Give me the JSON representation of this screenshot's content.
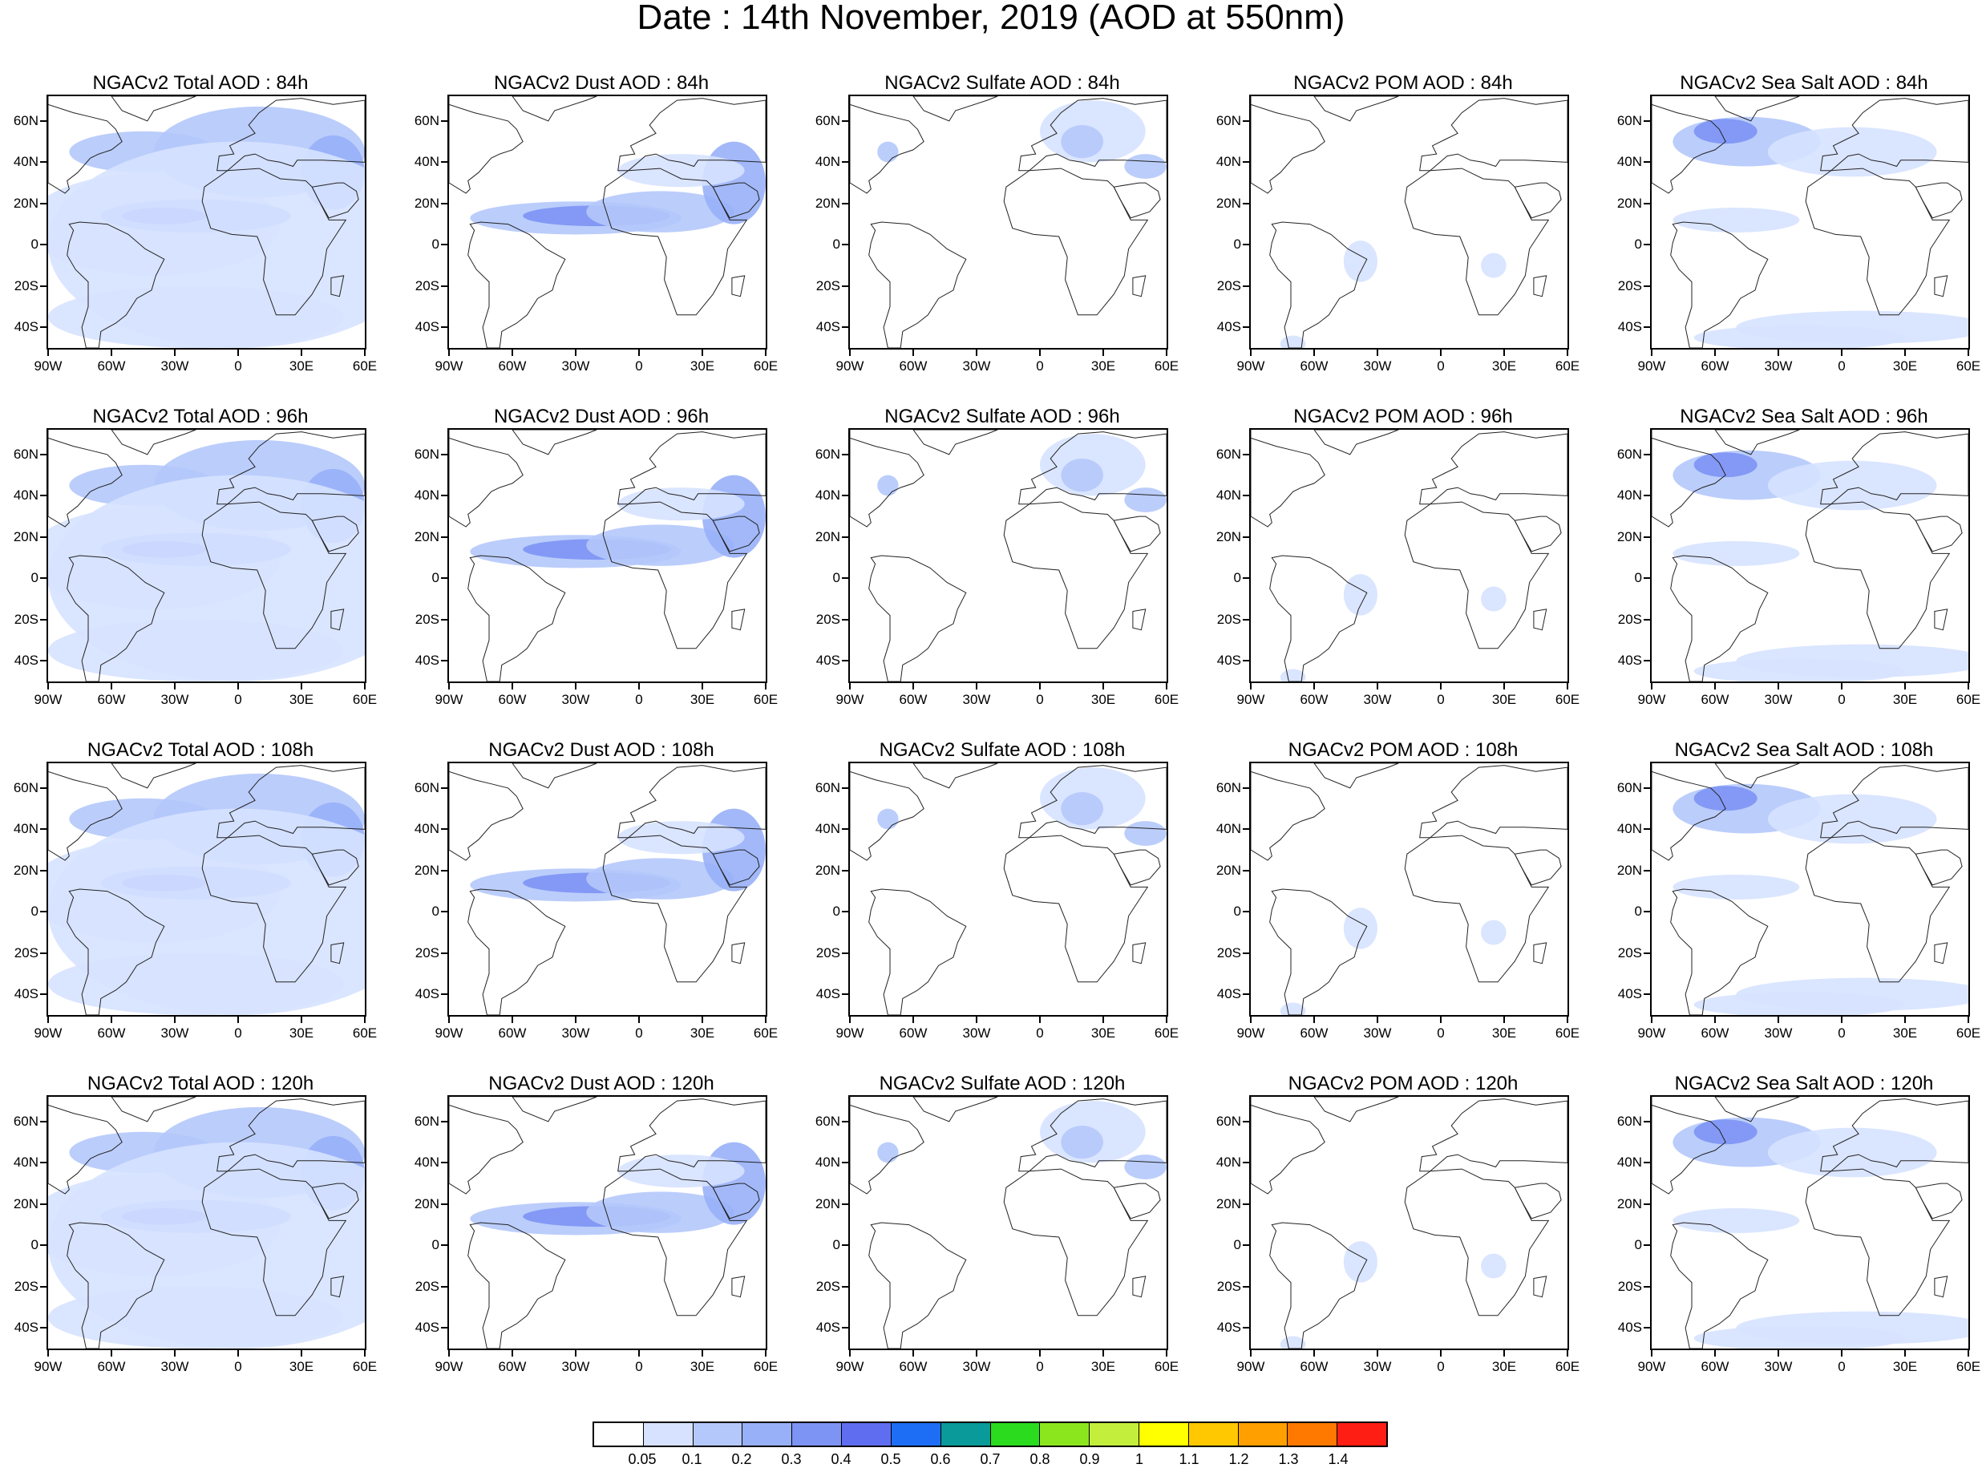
{
  "title": "Date : 14th November, 2019 (AOD at 550nm)",
  "panel_titles": [
    [
      "NGACv2 Total AOD : 84h",
      "NGACv2 Dust AOD : 84h",
      "NGACv2 Sulfate AOD : 84h",
      "NGACv2 POM AOD : 84h",
      "NGACv2 Sea Salt AOD : 84h"
    ],
    [
      "NGACv2 Total AOD : 96h",
      "NGACv2 Dust AOD : 96h",
      "NGACv2 Sulfate AOD : 96h",
      "NGACv2 POM AOD : 96h",
      "NGACv2 Sea Salt AOD : 96h"
    ],
    [
      "NGACv2 Total AOD : 108h",
      "NGACv2 Dust AOD : 108h",
      "NGACv2 Sulfate AOD : 108h",
      "NGACv2 POM AOD : 108h",
      "NGACv2 Sea Salt AOD : 108h"
    ],
    [
      "NGACv2 Total AOD : 120h",
      "NGACv2 Dust AOD : 120h",
      "NGACv2 Sulfate AOD : 120h",
      "NGACv2 POM AOD : 120h",
      "NGACv2 Sea Salt  AOD : 120h"
    ]
  ],
  "lat_labels": [
    "60N",
    "40N",
    "20N",
    "0",
    "20S",
    "40S"
  ],
  "lon_labels": [
    "90W",
    "60W",
    "30W",
    "0",
    "30E",
    "60E"
  ],
  "colorbar": {
    "colors": [
      "#ffffff",
      "#d6e2ff",
      "#b4c8fb",
      "#98b0f8",
      "#7d94f4",
      "#5f6ef0",
      "#1e6ef5",
      "#0a9a9a",
      "#2bdc1e",
      "#8ce61e",
      "#c3ee3c",
      "#ffff00",
      "#ffc800",
      "#ffa000",
      "#ff7800",
      "#ff1e14"
    ],
    "labels": [
      "0.05",
      "0.1",
      "0.2",
      "0.3",
      "0.4",
      "0.5",
      "0.6",
      "0.7",
      "0.8",
      "0.9",
      "1",
      "1.1",
      "1.2",
      "1.3",
      "1.4"
    ]
  },
  "chart_data": {
    "type": "heatmap",
    "title": "Date : 14th November, 2019 (AOD at 550nm)",
    "xlim": [
      "90W",
      "60E"
    ],
    "ylim": [
      "50S",
      "72N"
    ],
    "forecast_hours": [
      "84h",
      "96h",
      "108h",
      "120h"
    ],
    "species": [
      "Total AOD",
      "Dust AOD",
      "Sulfate AOD",
      "POM AOD",
      "Sea Salt AOD"
    ],
    "levels": [
      0.05,
      0.1,
      0.2,
      0.3,
      0.4,
      0.5,
      0.6,
      0.7,
      0.8,
      0.9,
      1,
      1.1,
      1.2,
      1.3,
      1.4
    ]
  }
}
